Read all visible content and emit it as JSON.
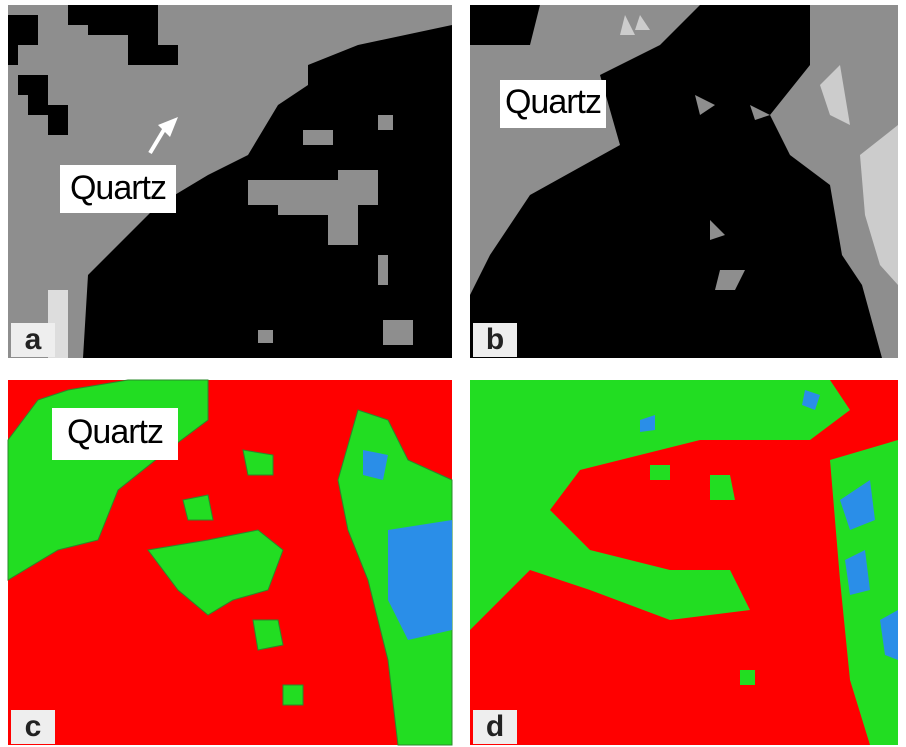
{
  "panels": [
    {
      "label": "a",
      "annotation": "Quartz"
    },
    {
      "label": "b",
      "annotation": "Quartz"
    },
    {
      "label": "c",
      "annotation": "Quartz"
    },
    {
      "label": "d"
    }
  ]
}
